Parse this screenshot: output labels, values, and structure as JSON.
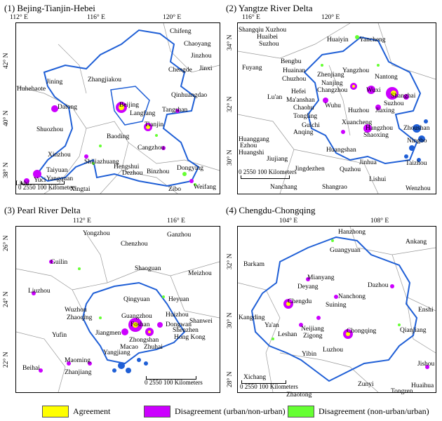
{
  "panels": [
    {
      "title": "(1) Bejing-Tianjin-Hebei",
      "lon_ticks": [
        "112° E",
        "116° E",
        "120° E"
      ],
      "lat_ticks": [
        "42° N",
        "40° N",
        "38° N"
      ],
      "scale": "0 2550    100 Kilometers",
      "cities": [
        "Chifeng",
        "Chaoyang",
        "Jinzhou",
        "Jinxi",
        "Chengde",
        "Qinhuangdao",
        "Jining",
        "Zhangjiakou",
        "Huhehaote",
        "Datong",
        "Beijing",
        "Langfang",
        "Tangshan",
        "Tianjin",
        "Shuozhou",
        "Baoding",
        "Cangzhou",
        "Xinzhou",
        "Shijiazhuang",
        "Taiyuan",
        "Hengshui",
        "Dezhou",
        "Binzhou",
        "Dongying",
        "Yangquan",
        "Lishi",
        "Yuci",
        "Xingtai",
        "Zibo",
        "Weifang"
      ]
    },
    {
      "title": "(2) Yangtze River Delta",
      "lon_ticks": [
        "116° E",
        "120° E"
      ],
      "lat_ticks": [
        "34° N",
        "32° N",
        "30° N"
      ],
      "scale": "0 2550    100 Kilometers",
      "cities": [
        "Shangqiu",
        "Xuzhou",
        "Huaibei",
        "Suzhou",
        "Huaiyin",
        "Yancheng",
        "Fuyang",
        "Bengbu",
        "Huainan",
        "Chuzhou",
        "Zhenjiang",
        "Yangzhou",
        "Nanjing",
        "Changzhou",
        "Nantong",
        "Wuxi",
        "Shanghai",
        "Suzhou",
        "Lu'an",
        "Hefei",
        "Ma'anshan",
        "Chaohu",
        "Wuhu",
        "Huzhou",
        "Jiaxing",
        "Tongling",
        "Guichi",
        "Xuancheng",
        "Hangzhou",
        "Anqing",
        "Shaoxing",
        "Zhoushan",
        "Huanggang",
        "Ezhou",
        "Huangshi",
        "Jiujiang",
        "Huangshan",
        "Jinhua",
        "Ningbo",
        "Taizhou",
        "Jingdezhen",
        "Quzhou",
        "Lishui",
        "Nanchang",
        "Shangrao",
        "Wenzhou"
      ]
    },
    {
      "title": "(3) Pearl River Delta",
      "lon_ticks": [
        "112° E",
        "116° E"
      ],
      "lat_ticks": [
        "26° N",
        "24° N",
        "22° N"
      ],
      "scale": "0 2550    100 Kilometers",
      "cities": [
        "Yongzhou",
        "Ganzhou",
        "Chenzhou",
        "Guilin",
        "Shaoguan",
        "Meizhou",
        "Liuzhou",
        "Qingyuan",
        "Heyuan",
        "Wuzhou",
        "Zhaoqing",
        "Guangzhou",
        "Huizhou",
        "Foshan",
        "Dongwan",
        "Shanwei",
        "Jiangmen",
        "Shenzhen",
        "Zhongshan",
        "Hong Kong",
        "Macao",
        "Zhuhai",
        "Yangjiang",
        "Yufin",
        "Maoming",
        "Zhanjiang",
        "Beihai"
      ]
    },
    {
      "title": "(4) Chengdu-Chongqing",
      "lon_ticks": [
        "104° E",
        "108° E"
      ],
      "lat_ticks": [
        "32° N",
        "30° N",
        "28° N"
      ],
      "scale": "0 2550    100 Kilometers",
      "cities": [
        "Hanzhong",
        "Ankang",
        "Guangyuan",
        "Barkam",
        "Mianyang",
        "Deyang",
        "Dazhou",
        "Chengdu",
        "Nanchong",
        "Suining",
        "Enshi",
        "Kangding",
        "Ya'an",
        "Neijiang",
        "Leshan",
        "Zigong",
        "Chongqing",
        "Qianjiang",
        "Yibin",
        "Luzhou",
        "Jishou",
        "Huaihua",
        "Xichang",
        "Zhaotong",
        "Zunyi",
        "Tongren"
      ]
    }
  ],
  "legend": [
    {
      "label": "Agreement",
      "color": "#ffff00"
    },
    {
      "label": "Disagreement (urban/non-urban)",
      "color": "#cc00ff"
    },
    {
      "label": "Disagreement (non-urban/urban)",
      "color": "#66ff33"
    }
  ],
  "colors": {
    "boundary": "#1f5fd6",
    "admin": "#888888"
  }
}
